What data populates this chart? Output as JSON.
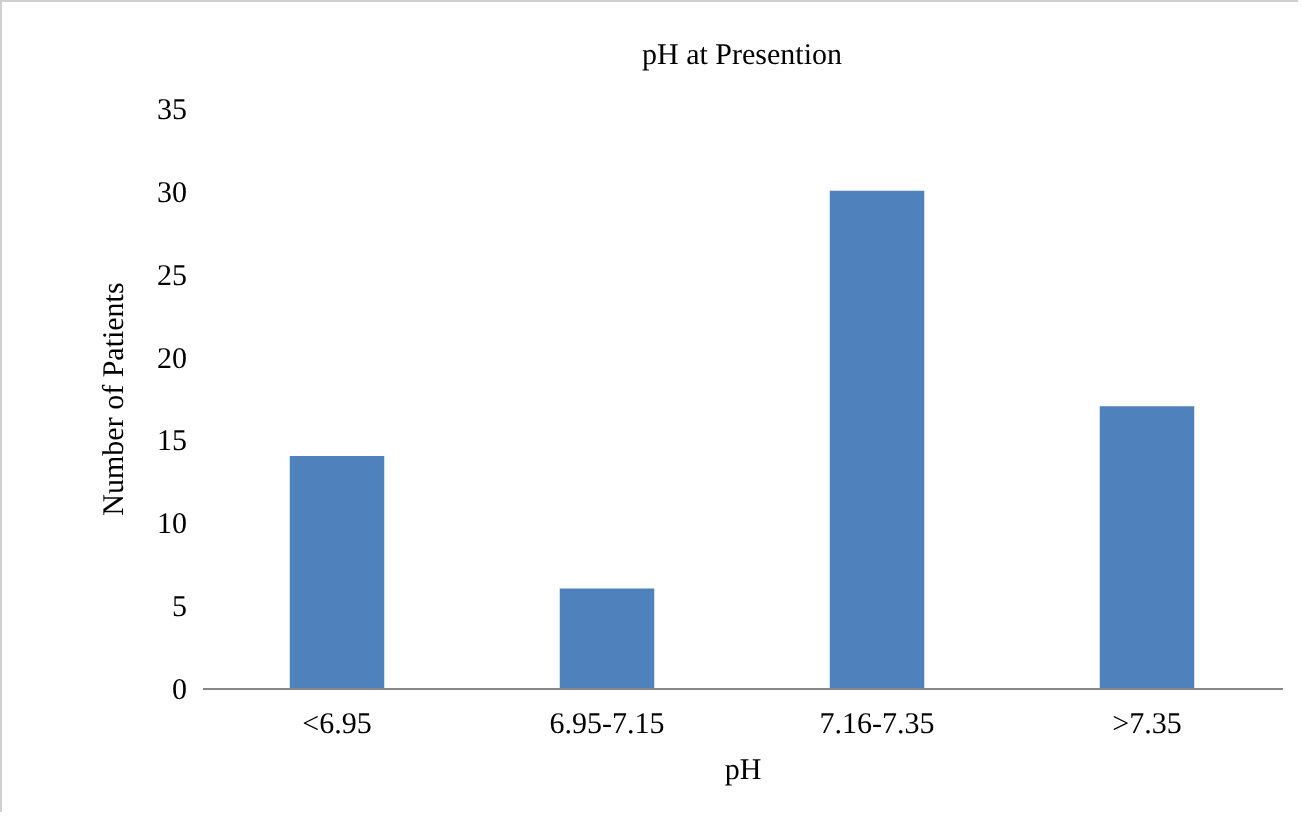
{
  "chart_data": {
    "type": "bar",
    "title": "pH at Presention",
    "xlabel": "pH",
    "ylabel": "Number of Patients",
    "categories": [
      "<6.95",
      "6.95-7.15",
      "7.16-7.35",
      ">7.35"
    ],
    "values": [
      14,
      6,
      30,
      17
    ],
    "color": "#4f81bd",
    "ylim": [
      0,
      35
    ],
    "yticks": [
      0,
      5,
      10,
      15,
      20,
      25,
      30,
      35
    ],
    "grid": false
  }
}
